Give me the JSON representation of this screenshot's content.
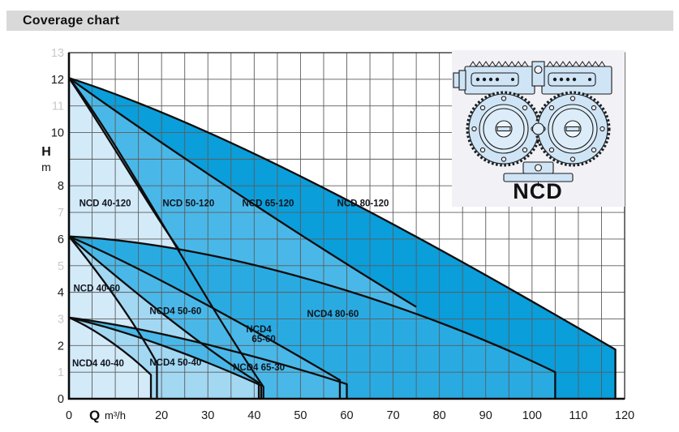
{
  "header": {
    "title": "Coverage chart"
  },
  "side_panel": {
    "model_label": "NCD"
  },
  "colors": {
    "header_bg": "#d9d9d9",
    "grid": "#5c5c5c",
    "curve": "#0d0d0d",
    "tick": "#191919",
    "muted_tick": "#c9c9c9",
    "panel_bg": "#f1f1f6",
    "pump_fill": "#cfe5f6",
    "c40": "#d3eaf9",
    "c50": "#a3d8f3",
    "c65": "#49b8e8",
    "c80_60": "#29abe2",
    "c80_120": "#0a9edb"
  },
  "chart_data": {
    "type": "area",
    "title": "Coverage chart",
    "x_axis": {
      "symbol": "Q",
      "unit": "m³/h",
      "min": 0,
      "max": 120,
      "grid_step": 5,
      "ticks": [
        0,
        20,
        30,
        40,
        50,
        60,
        70,
        80,
        90,
        100,
        110,
        120
      ]
    },
    "y_axis": {
      "symbol": "H",
      "unit": "m",
      "min": 0,
      "max": 13,
      "grid_step": 1,
      "ticks": [
        {
          "v": 13,
          "muted": true
        },
        {
          "v": 12,
          "muted": false
        },
        {
          "v": 11,
          "muted": true
        },
        {
          "v": 10,
          "muted": false
        },
        {
          "v": 8,
          "muted": false
        },
        {
          "v": 7,
          "muted": true
        },
        {
          "v": 6,
          "muted": false
        },
        {
          "v": 5,
          "muted": true
        },
        {
          "v": 4,
          "muted": false
        },
        {
          "v": 3,
          "muted": true
        },
        {
          "v": 2,
          "muted": false
        },
        {
          "v": 1,
          "muted": true
        },
        {
          "v": 0,
          "muted": false
        }
      ]
    },
    "grid": true,
    "legend_position": "none",
    "series": [
      {
        "name": "NCD 80-120",
        "label": "NCD 80-120",
        "label_q": 63.5,
        "label_h": 7.35,
        "h0": 12.05,
        "c1": [
          35,
          10.1
        ],
        "c2": [
          80,
          5.7
        ],
        "end": [
          118,
          1.85
        ],
        "drop": true,
        "color": "#0a9edb"
      },
      {
        "name": "NCD 65-120",
        "label": "NCD 65-120",
        "label_q": 43,
        "label_h": 7.35,
        "h0": 12.05,
        "c1": [
          14,
          10.3
        ],
        "c2": [
          45,
          6.6
        ],
        "end": [
          75,
          3.45
        ],
        "drop": false,
        "color": "#49b8e8"
      },
      {
        "name": "NCD 50-120",
        "label": "NCD 50-120",
        "label_q": 25.8,
        "label_h": 7.35,
        "h0": 12.05,
        "c1": [
          10,
          9.9
        ],
        "c2": [
          28,
          4.0
        ],
        "end": [
          42,
          0.45
        ],
        "drop": true,
        "color": "#a3d8f3"
      },
      {
        "name": "NCD 40-120",
        "label": "NCD 40-120",
        "label_q": 7.8,
        "label_h": 7.35,
        "h0": 12.05,
        "c1": [
          8,
          10.0
        ],
        "c2": [
          18,
          7.0
        ],
        "end": [
          24,
          5.55
        ],
        "drop": false,
        "color": "#d3eaf9"
      },
      {
        "name": "NCD4 80-60",
        "label": "NCD4 80-60",
        "label_q": 57,
        "label_h": 3.2,
        "h0": 6.1,
        "c1": [
          35,
          5.8
        ],
        "c2": [
          78,
          3.3
        ],
        "end": [
          105,
          1.0
        ],
        "drop": true,
        "color": "#29abe2"
      },
      {
        "name": "NCD4 65-60",
        "label": "NCD4|65-60",
        "label_q": 41,
        "label_h": 2.62,
        "h0": 6.1,
        "c1": [
          15,
          5.0
        ],
        "c2": [
          40,
          2.6
        ],
        "end": [
          58.5,
          0.7
        ],
        "drop": true,
        "color": "#49b8e8"
      },
      {
        "name": "NCD4 50-60",
        "label": "NCD4 50-60",
        "label_q": 23,
        "label_h": 3.3,
        "h0": 6.1,
        "c1": [
          10,
          4.6
        ],
        "c2": [
          28,
          2.0
        ],
        "end": [
          41,
          0.6
        ],
        "drop": true,
        "color": "#a3d8f3"
      },
      {
        "name": "NCD 40-60",
        "label": "NCD 40-60",
        "label_q": 6,
        "label_h": 4.15,
        "h0": 6.1,
        "c1": [
          7,
          4.6
        ],
        "c2": [
          14,
          2.9
        ],
        "end": [
          19,
          1.35
        ],
        "drop": true,
        "color": "#d3eaf9"
      },
      {
        "name": "NCD4 65-30",
        "label": "NCD4 65-30",
        "label_q": 41,
        "label_h": 1.19,
        "h0": 3.05,
        "c1": [
          20,
          2.6
        ],
        "c2": [
          45,
          1.4
        ],
        "end": [
          60,
          0.55
        ],
        "drop": true,
        "color": "#49b8e8"
      },
      {
        "name": "NCD4 50-40",
        "label": "NCD4 50-40",
        "label_q": 23,
        "label_h": 1.37,
        "h0": 3.05,
        "c1": [
          14,
          2.5
        ],
        "c2": [
          30,
          1.4
        ],
        "end": [
          41.5,
          0.5
        ],
        "drop": true,
        "color": "#a3d8f3"
      },
      {
        "name": "NCD4 40-40",
        "label": "NCD4 40-40",
        "label_q": 6.3,
        "label_h": 1.34,
        "h0": 3.05,
        "c1": [
          6,
          2.6
        ],
        "c2": [
          13,
          1.7
        ],
        "end": [
          17.7,
          0.9
        ],
        "drop": true,
        "color": "#d3eaf9"
      }
    ]
  }
}
